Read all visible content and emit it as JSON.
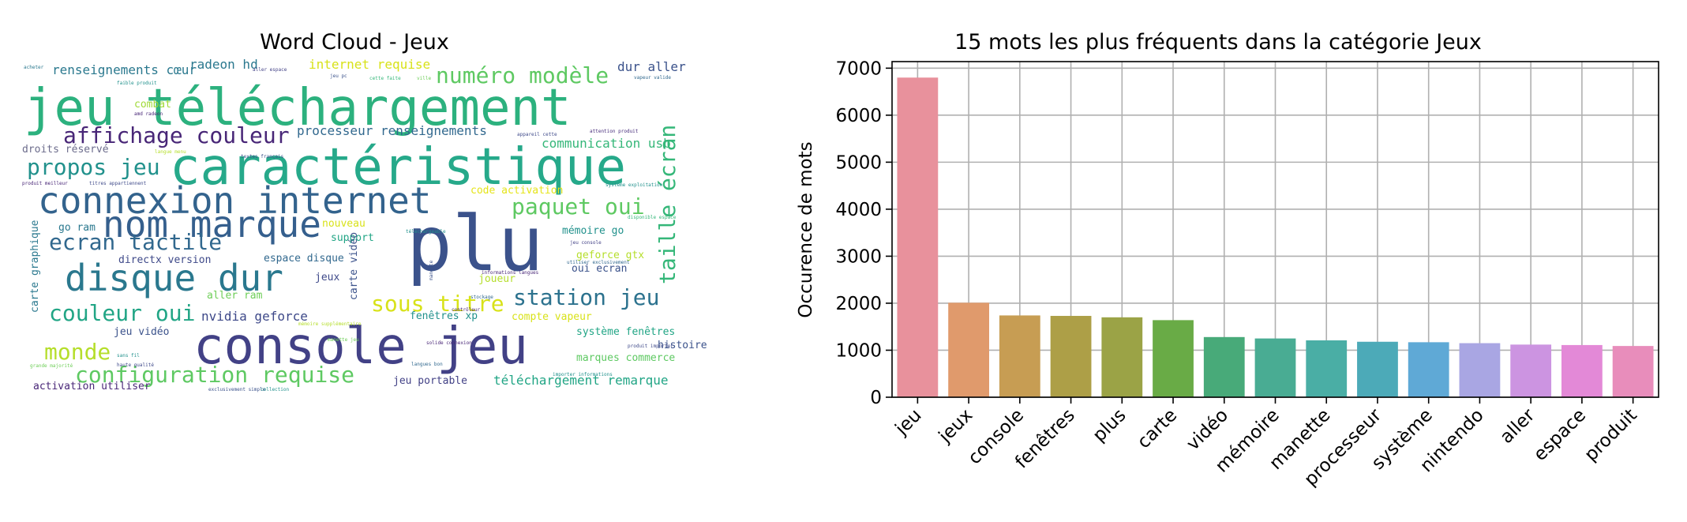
{
  "wordcloud": {
    "title": "Word Cloud - Jeux",
    "words": [
      {
        "text": "jeu téléchargement",
        "color": "#2cb17e",
        "size": "xl"
      },
      {
        "text": "caractéristique",
        "color": "#26a98a",
        "size": "xl"
      },
      {
        "text": "plu",
        "color": "#3b528b",
        "size": "xxl"
      },
      {
        "text": "console jeu",
        "color": "#424186",
        "size": "xl"
      },
      {
        "text": "connexion internet",
        "color": "#33638d",
        "size": "l"
      },
      {
        "text": "nom marque",
        "color": "#355f8d",
        "size": "l"
      },
      {
        "text": "disque dur",
        "color": "#2a788e",
        "size": "l"
      },
      {
        "text": "affichage couleur",
        "color": "#482677",
        "size": "m"
      },
      {
        "text": "numéro modèle",
        "color": "#5ec962",
        "size": "m"
      },
      {
        "text": "propos jeu",
        "color": "#21918c",
        "size": "m"
      },
      {
        "text": "ecran tactile",
        "color": "#31688e",
        "size": "m"
      },
      {
        "text": "paquet oui",
        "color": "#5ec962",
        "size": "m"
      },
      {
        "text": "station jeu",
        "color": "#2c728e",
        "size": "m"
      },
      {
        "text": "sous titre",
        "color": "#d8e219",
        "size": "m"
      },
      {
        "text": "taille écran",
        "color": "#35b779",
        "size": "m"
      },
      {
        "text": "couleur oui",
        "color": "#21a585",
        "size": "m"
      },
      {
        "text": "monde",
        "color": "#b5de2b",
        "size": "m"
      },
      {
        "text": "configuration requise",
        "color": "#5ec962",
        "size": "m"
      },
      {
        "text": "nvidia geforce",
        "color": "#3e4989",
        "size": "s"
      },
      {
        "text": "renseignements cœur",
        "color": "#2a788e",
        "size": "s"
      },
      {
        "text": "radeon hd",
        "color": "#2a788e",
        "size": "s"
      },
      {
        "text": "internet requise",
        "color": "#d8e219",
        "size": "s"
      },
      {
        "text": "dur aller",
        "color": "#3b528b",
        "size": "s"
      },
      {
        "text": "processeur renseignements",
        "color": "#31688e",
        "size": "s"
      },
      {
        "text": "communication usb",
        "color": "#35b779",
        "size": "s"
      },
      {
        "text": "combat",
        "color": "#a0da39",
        "size": "xs"
      },
      {
        "text": "droits réservé",
        "color": "#6c6c8c",
        "size": "xs"
      },
      {
        "text": "code activation",
        "color": "#e5e419",
        "size": "xs"
      },
      {
        "text": "mémoire go",
        "color": "#21918c",
        "size": "xs"
      },
      {
        "text": "go ram",
        "color": "#2a788e",
        "size": "xs"
      },
      {
        "text": "support",
        "color": "#21a585",
        "size": "xs"
      },
      {
        "text": "nouveau",
        "color": "#d8e219",
        "size": "xs"
      },
      {
        "text": "geforce gtx",
        "color": "#b5de2b",
        "size": "xs"
      },
      {
        "text": "oui ecran",
        "color": "#3b528b",
        "size": "xs"
      },
      {
        "text": "directx version",
        "color": "#3e4989",
        "size": "xs"
      },
      {
        "text": "espace disque",
        "color": "#31688e",
        "size": "xs"
      },
      {
        "text": "carte vidéo",
        "color": "#3b528b",
        "size": "xs"
      },
      {
        "text": "carte graphique",
        "color": "#2a788e",
        "size": "xs"
      },
      {
        "text": "joueur",
        "color": "#b5de2b",
        "size": "xs"
      },
      {
        "text": "aller ram",
        "color": "#6ece58",
        "size": "xs"
      },
      {
        "text": "jeux",
        "color": "#3e4989",
        "size": "xs"
      },
      {
        "text": "compte vapeur",
        "color": "#d8e219",
        "size": "xs"
      },
      {
        "text": "fenêtres xp",
        "color": "#21918c",
        "size": "xs"
      },
      {
        "text": "système fenêtres",
        "color": "#21a585",
        "size": "xs"
      },
      {
        "text": "histoire",
        "color": "#3b528b",
        "size": "xs"
      },
      {
        "text": "jeu vidéo",
        "color": "#3b528b",
        "size": "xs"
      },
      {
        "text": "marques commerce",
        "color": "#5ec962",
        "size": "xs"
      },
      {
        "text": "jeu portable",
        "color": "#424186",
        "size": "xs"
      },
      {
        "text": "téléchargement remarque",
        "color": "#21a585",
        "size": "s"
      },
      {
        "text": "activation utiliser",
        "color": "#482677",
        "size": "xs"
      },
      {
        "text": "acheter",
        "color": "#2a788e",
        "size": "xxs"
      },
      {
        "text": "faible produit",
        "color": "#21918c",
        "size": "xxs"
      },
      {
        "text": "aller espace",
        "color": "#424186",
        "size": "xxs"
      },
      {
        "text": "jeu pc",
        "color": "#3b528b",
        "size": "xxs"
      },
      {
        "text": "cette faite",
        "color": "#35b779",
        "size": "xxs"
      },
      {
        "text": "ville",
        "color": "#6ece58",
        "size": "xxs"
      },
      {
        "text": "vapeur valide",
        "color": "#31688e",
        "size": "xxs"
      },
      {
        "text": "amd radeon",
        "color": "#482677",
        "size": "xxs"
      },
      {
        "text": "appareil cette",
        "color": "#3e4989",
        "size": "xxs"
      },
      {
        "text": "attention produit",
        "color": "#472d7b",
        "size": "xxs"
      },
      {
        "text": "langue menu",
        "color": "#b5de2b",
        "size": "xxs"
      },
      {
        "text": "textes français",
        "color": "#3b528b",
        "size": "xxs"
      },
      {
        "text": "produit meilleur",
        "color": "#482677",
        "size": "xxs"
      },
      {
        "text": "titres appartiennent",
        "color": "#3e4989",
        "size": "xxs"
      },
      {
        "text": "système exploitation",
        "color": "#21918c",
        "size": "xxs"
      },
      {
        "text": "disponible espace",
        "color": "#35b779",
        "size": "xxs"
      },
      {
        "text": "téléchargeable",
        "color": "#21918c",
        "size": "xxs"
      },
      {
        "text": "jeu console",
        "color": "#424186",
        "size": "xxs"
      },
      {
        "text": "utiliser exclusivement",
        "color": "#31688e",
        "size": "xxs"
      },
      {
        "text": "informations langues",
        "color": "#482677",
        "size": "xxs"
      },
      {
        "text": "manette",
        "color": "#3b528b",
        "size": "xxs"
      },
      {
        "text": "mémoire supplémentaire",
        "color": "#b5de2b",
        "size": "xxs"
      },
      {
        "text": "produit importer",
        "color": "#3e4989",
        "size": "xxs"
      },
      {
        "text": "manette jeu",
        "color": "#6ece58",
        "size": "xxs"
      },
      {
        "text": "stockage",
        "color": "#31688e",
        "size": "xxs"
      },
      {
        "text": "contrôleur",
        "color": "#482677",
        "size": "xxs"
      },
      {
        "text": "solide connexion",
        "color": "#482677",
        "size": "xxs"
      },
      {
        "text": "sans fil",
        "color": "#21918c",
        "size": "xxs"
      },
      {
        "text": "grande majorité",
        "color": "#6ece58",
        "size": "xxs"
      },
      {
        "text": "haute qualité",
        "color": "#3e4989",
        "size": "xxs"
      },
      {
        "text": "importer informations",
        "color": "#21918c",
        "size": "xxs"
      },
      {
        "text": "langues bon",
        "color": "#31688e",
        "size": "xxs"
      },
      {
        "text": "exclusivement simple",
        "color": "#3b528b",
        "size": "xxs"
      },
      {
        "text": "collection",
        "color": "#21918c",
        "size": "xxs"
      }
    ]
  },
  "barchart": {
    "title": "15 mots les plus fréquents dans la catégorie Jeux",
    "ylabel": "Occurence de mots",
    "yticks": [
      "0",
      "1000",
      "2000",
      "3000",
      "4000",
      "5000",
      "6000",
      "7000"
    ]
  },
  "chart_data": {
    "type": "bar",
    "title": "15 mots les plus fréquents dans la catégorie Jeux",
    "xlabel": "",
    "ylabel": "Occurence de mots",
    "ylim": [
      0,
      7140
    ],
    "grid": true,
    "categories": [
      "jeu",
      "jeux",
      "console",
      "fenêtres",
      "plus",
      "carte",
      "vidéo",
      "mémoire",
      "manette",
      "processeur",
      "système",
      "nintendo",
      "aller",
      "espace",
      "produit"
    ],
    "values": [
      6800,
      2010,
      1740,
      1730,
      1700,
      1640,
      1280,
      1250,
      1210,
      1180,
      1170,
      1150,
      1120,
      1110,
      1090
    ],
    "colors": [
      "#e8919c",
      "#e09a6c",
      "#c79d53",
      "#ad9f47",
      "#9ba346",
      "#69ab46",
      "#48aa79",
      "#49ac93",
      "#4aaea5",
      "#4caab8",
      "#5fa9d6",
      "#a9a6e3",
      "#cc94e1",
      "#e389d7",
      "#e88dbb"
    ]
  }
}
